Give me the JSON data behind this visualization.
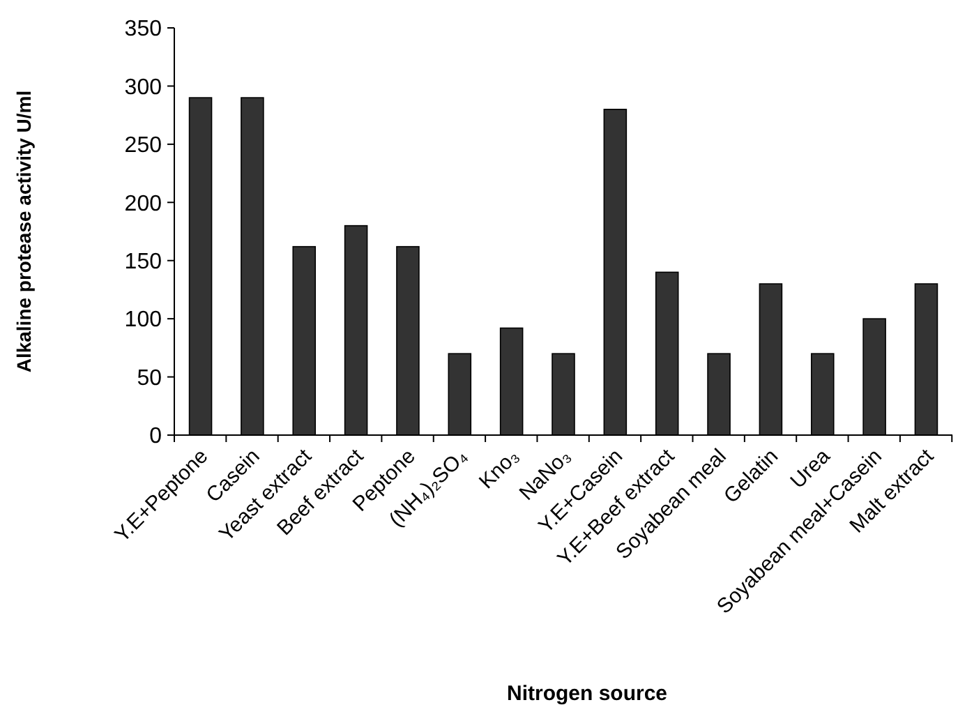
{
  "chart_data": {
    "type": "bar",
    "xlabel": "Nitrogen source",
    "ylabel": "Alkaline protease activity U/ml",
    "categories": [
      "Y.E+Peptone",
      "Casein",
      "Yeast extract",
      "Beef extract",
      "Peptone",
      "(NH₄)₂SO₄",
      "Kno₃",
      "NaNo₃",
      "Y.E+Casein",
      "Y.E+Beef extract",
      "Soyabean meal",
      "Gelatin",
      "Urea",
      "Soyabean meal+Casein",
      "Malt extract"
    ],
    "values": [
      290,
      290,
      162,
      180,
      162,
      70,
      92,
      70,
      280,
      140,
      70,
      130,
      70,
      100,
      130
    ],
    "color": "#333333",
    "ylim": [
      0,
      350
    ],
    "yticks": [
      0,
      50,
      100,
      150,
      200,
      250,
      300,
      350
    ]
  }
}
